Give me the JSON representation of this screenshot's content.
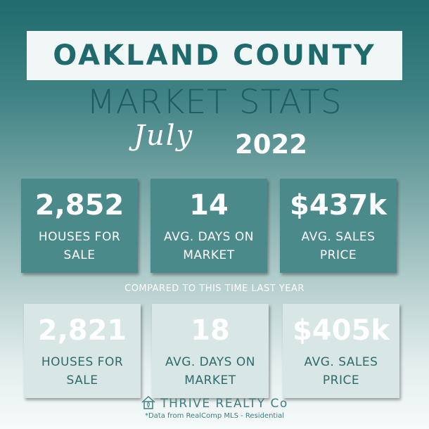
{
  "header": {
    "title": "OAKLAND COUNTY",
    "subtitle": "MARKET STATS",
    "month": "July",
    "year": "2022"
  },
  "current_stats": [
    {
      "value": "2,852",
      "label": "HOUSES FOR SALE"
    },
    {
      "value": "14",
      "label": "AVG. DAYS ON MARKET"
    },
    {
      "value": "$437k",
      "label": "AVG. SALES PRICE"
    }
  ],
  "comparison_label": "COMPARED TO THIS TIME LAST YEAR",
  "previous_stats": [
    {
      "value": "2,821",
      "label": "HOUSES FOR SALE"
    },
    {
      "value": "18",
      "label": "AVG. DAYS ON MARKET"
    },
    {
      "value": "$405k",
      "label": "AVG. SALES PRICE"
    }
  ],
  "footer": {
    "brand": "THRIVE REALTY Co",
    "brand_icon": "house-icon",
    "note": "*Data from RealComp MLS - Residential"
  },
  "colors": {
    "brand_teal": "#1f6a6c",
    "current_box": "#4b8a8b",
    "past_box": "#d8e6e5"
  }
}
